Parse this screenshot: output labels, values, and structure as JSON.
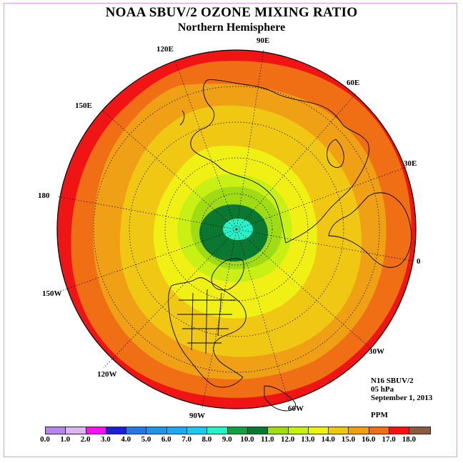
{
  "title": "NOAA SBUV/2 OZONE MIXING RATIO",
  "subtitle": "Northern Hemisphere",
  "longitude_labels": {
    "e120": "120E",
    "e90": "90E",
    "e60": "60E",
    "e30": "30E",
    "lon0": "0",
    "lon180": "180",
    "e150": "150E",
    "w150": "150W",
    "w120": "120W",
    "w90": "90W",
    "w60": "60W",
    "w30": "30W"
  },
  "info": {
    "satellite": "N16 SBUV/2",
    "level": "05 hPa",
    "date": "September 1, 2013",
    "units": "PPM"
  },
  "colorbar": {
    "ticks": [
      "0.0",
      "1.0",
      "2.0",
      "3.0",
      "4.0",
      "5.0",
      "6.0",
      "7.0",
      "8.0",
      "9.0",
      "10.0",
      "11.0",
      "12.0",
      "13.0",
      "14.0",
      "15.0",
      "16.0",
      "17.0",
      "18.0"
    ],
    "colors": [
      "#b886e8",
      "#dcb4f0",
      "#f014f0",
      "#1e1ed2",
      "#2478e6",
      "#1e96e6",
      "#1eaaf0",
      "#1ec8f0",
      "#28f0c8",
      "#14a03c",
      "#0a7832",
      "#a0dc14",
      "#c8f014",
      "#f0f014",
      "#f0c814",
      "#f0a014",
      "#f06e14",
      "#f01414",
      "#8c5a3c"
    ]
  }
}
